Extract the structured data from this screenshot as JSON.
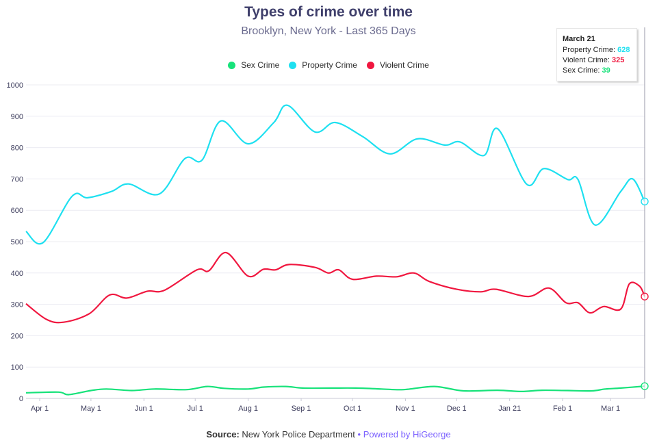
{
  "header": {
    "title": "Types of crime over time",
    "subtitle": "Brooklyn, New York - Last 365 Days"
  },
  "legend": {
    "items": [
      {
        "label": "Sex Crime",
        "color": "#17e27a"
      },
      {
        "label": "Property Crime",
        "color": "#1ee0f0"
      },
      {
        "label": "Violent Crime",
        "color": "#f0173f"
      }
    ]
  },
  "tooltip": {
    "date": "March 21",
    "rows": [
      {
        "label": "Property Crime:",
        "value": "628",
        "color": "#1ee0f0"
      },
      {
        "label": "Violent Crime:",
        "value": "325",
        "color": "#f0173f"
      },
      {
        "label": "Sex Crime:",
        "value": "39",
        "color": "#17e27a"
      }
    ]
  },
  "footer": {
    "source_label": "Source:",
    "source_text": "New York Police Department",
    "separator": "•",
    "powered": "Powered by HiGeorge"
  },
  "chart_data": {
    "type": "line",
    "title": "Types of crime over time",
    "subtitle": "Brooklyn, New York - Last 365 Days",
    "xlabel": "",
    "ylabel": "",
    "ylim": [
      0,
      1000
    ],
    "yticks": [
      0,
      100,
      200,
      300,
      400,
      500,
      600,
      700,
      800,
      900,
      1000
    ],
    "xtick_labels": [
      "Apr 1",
      "May 1",
      "Jun 1",
      "Jul 1",
      "Aug 1",
      "Sep 1",
      "Oct 1",
      "Nov 1",
      "Dec 1",
      "Jan 21",
      "Feb 1",
      "Mar 1"
    ],
    "xtick_dates": [
      "2020-04-01",
      "2020-05-01",
      "2020-06-01",
      "2020-07-01",
      "2020-08-01",
      "2020-09-01",
      "2020-10-01",
      "2020-11-01",
      "2020-12-01",
      "2021-01-01",
      "2021-02-01",
      "2021-03-01"
    ],
    "xrange": [
      "2020-03-24",
      "2021-03-21"
    ],
    "grid": true,
    "legend_position": "top-center",
    "highlight_date": "2021-03-21",
    "series": [
      {
        "name": "Property Crime",
        "color": "#1ee0f0",
        "points": [
          [
            "2020-03-24",
            533
          ],
          [
            "2020-04-03",
            497
          ],
          [
            "2020-04-20",
            645
          ],
          [
            "2020-04-29",
            640
          ],
          [
            "2020-05-13",
            660
          ],
          [
            "2020-05-23",
            684
          ],
          [
            "2020-06-10",
            652
          ],
          [
            "2020-06-25",
            765
          ],
          [
            "2020-07-05",
            760
          ],
          [
            "2020-07-16",
            885
          ],
          [
            "2020-08-01",
            812
          ],
          [
            "2020-08-16",
            880
          ],
          [
            "2020-08-24",
            935
          ],
          [
            "2020-09-09",
            850
          ],
          [
            "2020-09-21",
            880
          ],
          [
            "2020-10-07",
            835
          ],
          [
            "2020-10-23",
            780
          ],
          [
            "2020-11-08",
            828
          ],
          [
            "2020-11-24",
            808
          ],
          [
            "2020-12-03",
            818
          ],
          [
            "2020-12-17",
            775
          ],
          [
            "2020-12-25",
            860
          ],
          [
            "2021-01-11",
            683
          ],
          [
            "2021-01-21",
            733
          ],
          [
            "2021-02-04",
            698
          ],
          [
            "2021-02-10",
            698
          ],
          [
            "2021-02-20",
            553
          ],
          [
            "2021-03-07",
            660
          ],
          [
            "2021-03-14",
            700
          ],
          [
            "2021-03-21",
            628
          ]
        ]
      },
      {
        "name": "Violent Crime",
        "color": "#f0173f",
        "points": [
          [
            "2020-03-24",
            302
          ],
          [
            "2020-04-05",
            252
          ],
          [
            "2020-04-15",
            243
          ],
          [
            "2020-04-30",
            270
          ],
          [
            "2020-05-12",
            330
          ],
          [
            "2020-05-22",
            320
          ],
          [
            "2020-06-03",
            342
          ],
          [
            "2020-06-13",
            345
          ],
          [
            "2020-07-02",
            410
          ],
          [
            "2020-07-09",
            407
          ],
          [
            "2020-07-19",
            465
          ],
          [
            "2020-08-01",
            390
          ],
          [
            "2020-08-10",
            412
          ],
          [
            "2020-08-17",
            410
          ],
          [
            "2020-08-25",
            427
          ],
          [
            "2020-09-09",
            418
          ],
          [
            "2020-09-17",
            400
          ],
          [
            "2020-09-23",
            410
          ],
          [
            "2020-10-01",
            380
          ],
          [
            "2020-10-15",
            390
          ],
          [
            "2020-10-27",
            388
          ],
          [
            "2020-11-06",
            400
          ],
          [
            "2020-11-15",
            373
          ],
          [
            "2020-12-01",
            348
          ],
          [
            "2020-12-15",
            340
          ],
          [
            "2020-12-24",
            348
          ],
          [
            "2021-01-12",
            325
          ],
          [
            "2021-01-24",
            352
          ],
          [
            "2021-02-03",
            305
          ],
          [
            "2021-02-10",
            305
          ],
          [
            "2021-02-17",
            273
          ],
          [
            "2021-02-25",
            293
          ],
          [
            "2021-03-07",
            285
          ],
          [
            "2021-03-12",
            365
          ],
          [
            "2021-03-18",
            358
          ],
          [
            "2021-03-21",
            325
          ]
        ]
      },
      {
        "name": "Sex Crime",
        "color": "#17e27a",
        "points": [
          [
            "2020-03-24",
            18
          ],
          [
            "2020-04-12",
            20
          ],
          [
            "2020-04-18",
            12
          ],
          [
            "2020-05-01",
            25
          ],
          [
            "2020-05-10",
            30
          ],
          [
            "2020-05-25",
            25
          ],
          [
            "2020-06-07",
            30
          ],
          [
            "2020-06-26",
            28
          ],
          [
            "2020-07-08",
            38
          ],
          [
            "2020-07-18",
            32
          ],
          [
            "2020-08-01",
            30
          ],
          [
            "2020-08-10",
            36
          ],
          [
            "2020-08-23",
            38
          ],
          [
            "2020-09-02",
            33
          ],
          [
            "2020-09-18",
            33
          ],
          [
            "2020-10-03",
            33
          ],
          [
            "2020-10-18",
            30
          ],
          [
            "2020-10-31",
            28
          ],
          [
            "2020-11-18",
            38
          ],
          [
            "2020-12-05",
            24
          ],
          [
            "2020-12-25",
            26
          ],
          [
            "2021-01-08",
            22
          ],
          [
            "2021-01-20",
            26
          ],
          [
            "2021-02-04",
            25
          ],
          [
            "2021-02-18",
            24
          ],
          [
            "2021-02-26",
            30
          ],
          [
            "2021-03-07",
            33
          ],
          [
            "2021-03-21",
            39
          ]
        ]
      }
    ]
  }
}
